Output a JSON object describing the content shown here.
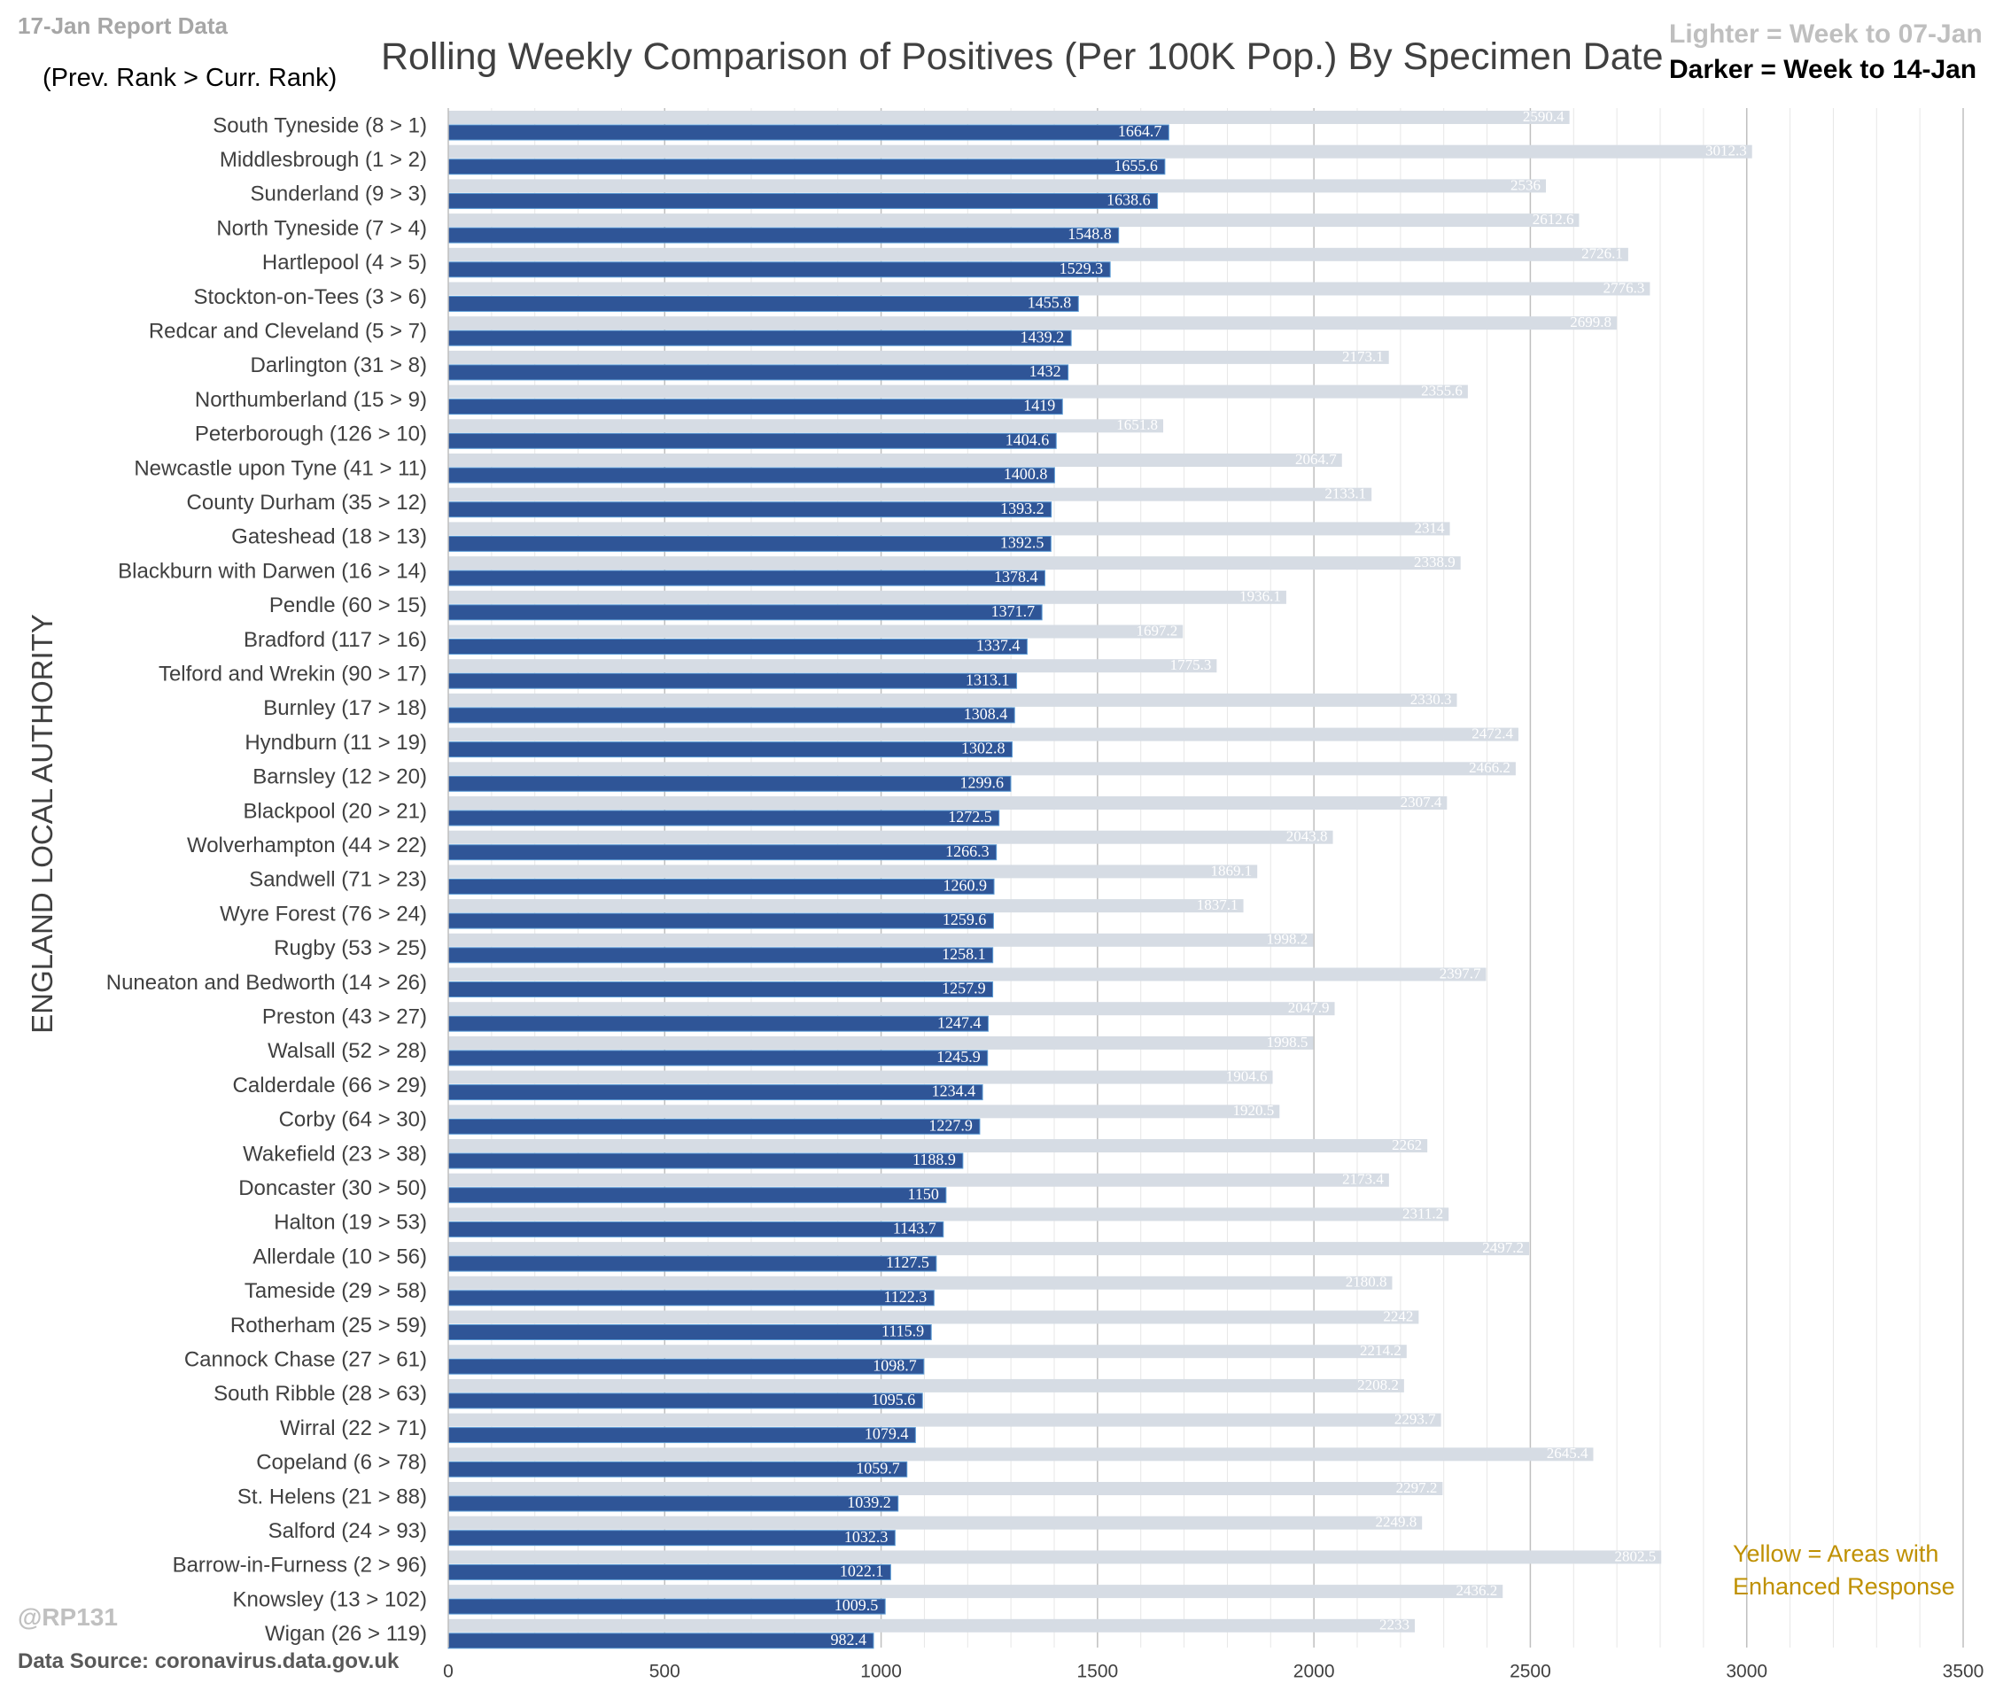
{
  "header": {
    "report_date": "17-Jan Report Data",
    "rank_note": "(Prev. Rank > Curr. Rank)",
    "title": "Rolling Weekly Comparison of Positives  (Per 100K Pop.) By Specimen Date",
    "legend_light_label": "Lighter = ",
    "legend_light_value": "Week to 07-Jan",
    "legend_dark_label": "Darker = ",
    "legend_dark_value": "Week to 14-Jan"
  },
  "footer": {
    "handle": "@RP131",
    "source": "Data Source: coronavirus.data.gov.uk",
    "yellow_note_line1": "Yellow = Areas with",
    "yellow_note_line2": "Enhanced Response"
  },
  "colors": {
    "light_bar": "#d6dce4",
    "dark_bar": "#2f5597",
    "dark_bar_edge": "#5b9bd5",
    "grid": "#d9d9d9",
    "light_label": "#ffffff",
    "dark_label": "#ffffff",
    "yellow_note": "#bf9000"
  },
  "chart_data": {
    "type": "bar",
    "orientation": "horizontal",
    "title": "Rolling Weekly Comparison of Positives  (Per 100K Pop.) By Specimen Date",
    "ylabel": "ENGLAND LOCAL AUTHORITY",
    "xlabel": "",
    "xlim": [
      0,
      3500
    ],
    "xticks": [
      0,
      500,
      1000,
      1500,
      2000,
      2500,
      3000,
      3500
    ],
    "grid": true,
    "legend_placement": "top-right",
    "categories": [
      "South Tyneside (8 > 1)",
      "Middlesbrough (1 > 2)",
      "Sunderland (9 > 3)",
      "North Tyneside (7 > 4)",
      "Hartlepool (4 > 5)",
      "Stockton-on-Tees (3 > 6)",
      "Redcar and Cleveland (5 > 7)",
      "Darlington (31 > 8)",
      "Northumberland (15 > 9)",
      "Peterborough (126 > 10)",
      "Newcastle upon Tyne (41 > 11)",
      "County Durham (35 > 12)",
      "Gateshead (18 > 13)",
      "Blackburn with Darwen (16 > 14)",
      "Pendle (60 > 15)",
      "Bradford (117 > 16)",
      "Telford and Wrekin (90 > 17)",
      "Burnley (17 > 18)",
      "Hyndburn (11 > 19)",
      "Barnsley (12 > 20)",
      "Blackpool (20 > 21)",
      "Wolverhampton (44 > 22)",
      "Sandwell (71 > 23)",
      "Wyre Forest (76 > 24)",
      "Rugby (53 > 25)",
      "Nuneaton and Bedworth (14 > 26)",
      "Preston (43 > 27)",
      "Walsall (52 > 28)",
      "Calderdale (66 > 29)",
      "Corby (64 > 30)",
      "Wakefield (23 > 38)",
      "Doncaster (30 > 50)",
      "Halton (19 > 53)",
      "Allerdale (10 > 56)",
      "Tameside (29 > 58)",
      "Rotherham (25 > 59)",
      "Cannock Chase (27 > 61)",
      "South Ribble (28 > 63)",
      "Wirral (22 > 71)",
      "Copeland (6 > 78)",
      "St. Helens (21 > 88)",
      "Salford (24 > 93)",
      "Barrow-in-Furness (2 > 96)",
      "Knowsley (13 > 102)",
      "Wigan (26 > 119)"
    ],
    "series": [
      {
        "name": "Week to 07-Jan",
        "values": [
          2590.4,
          3012.3,
          2536,
          2612.6,
          2726.1,
          2776.3,
          2699.8,
          2173.1,
          2355.6,
          1651.8,
          2064.7,
          2133.1,
          2314,
          2338.9,
          1936.1,
          1697.2,
          1775.3,
          2330.3,
          2472.4,
          2466.2,
          2307.4,
          2043.8,
          1869.1,
          1837.1,
          1998.2,
          2397.7,
          2047.9,
          1998.5,
          1904.6,
          1920.5,
          2262,
          2173.4,
          2311.2,
          2497.2,
          2180.8,
          2242,
          2214.2,
          2208.2,
          2293.7,
          2645.4,
          2297.2,
          2249.8,
          2802.5,
          2436.2,
          2233
        ],
        "labels": [
          "2590.4",
          "3012.3",
          "2536",
          "2612.6",
          "2726.1",
          "2776.3",
          "2699.8",
          "2173.1",
          "2355.6",
          "1651.8",
          "2064.7",
          "2133.1",
          "2314",
          "2338.9",
          "1936.1",
          "1697.2",
          "1775.3",
          "2330.3",
          "2472.4",
          "2466.2",
          "2307.4",
          "2043.8",
          "1869.1",
          "1837.1",
          "1998.2",
          "2397.7",
          "2047.9",
          "1998.5",
          "1904.6",
          "1920.5",
          "2262",
          "2173.4",
          "2311.2",
          "2497.2",
          "2180.8",
          "2242",
          "2214.2",
          "2208.2",
          "2293.7",
          "2645.4",
          "2297.2",
          "2249.8",
          "2802.5",
          "2436.2",
          "2233"
        ]
      },
      {
        "name": "Week to 14-Jan",
        "values": [
          1664.7,
          1655.6,
          1638.6,
          1548.8,
          1529.3,
          1455.8,
          1439.2,
          1432,
          1419,
          1404.6,
          1400.8,
          1393.2,
          1392.5,
          1378.4,
          1371.7,
          1337.4,
          1313.1,
          1308.4,
          1302.8,
          1299.6,
          1272.5,
          1266.3,
          1260.9,
          1259.6,
          1258.1,
          1257.9,
          1247.4,
          1245.9,
          1234.4,
          1227.9,
          1188.9,
          1150,
          1143.7,
          1127.5,
          1122.3,
          1115.9,
          1098.7,
          1095.6,
          1079.4,
          1059.7,
          1039.2,
          1032.3,
          1022.1,
          1009.5,
          982.4
        ],
        "labels": [
          "1664.7",
          "1655.6",
          "1638.6",
          "1548.8",
          "1529.3",
          "1455.8",
          "1439.2",
          "1432",
          "1419",
          "1404.6",
          "1400.8",
          "1393.2",
          "1392.5",
          "1378.4",
          "1371.7",
          "1337.4",
          "1313.1",
          "1308.4",
          "1302.8",
          "1299.6",
          "1272.5",
          "1266.3",
          "1260.9",
          "1259.6",
          "1258.1",
          "1257.9",
          "1247.4",
          "1245.9",
          "1234.4",
          "1227.9",
          "1188.9",
          "1150",
          "1143.7",
          "1127.5",
          "1122.3",
          "1115.9",
          "1098.7",
          "1095.6",
          "1079.4",
          "1059.7",
          "1039.2",
          "1032.3",
          "1022.1",
          "1009.5",
          "982.4"
        ]
      }
    ]
  }
}
